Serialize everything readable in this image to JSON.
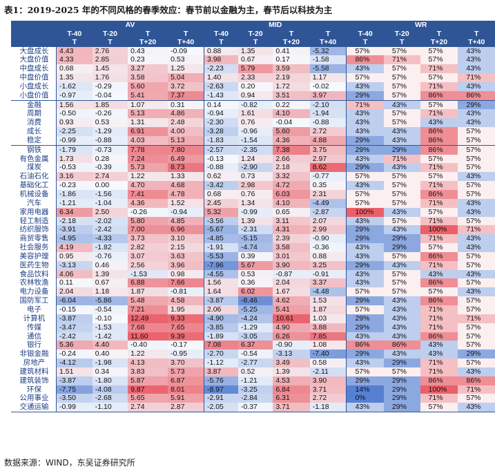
{
  "title": "表1：2019-2025 年的不同风格的春季效应：春节前以金融为主，春节后以科技为主",
  "source": "数据来源：WIND，东吴证券研究所",
  "header": {
    "groups": [
      "AV",
      "MID",
      "WR"
    ],
    "sub_top": [
      "T-40",
      "T-20",
      "T",
      "T"
    ],
    "sub_bottom": [
      "T",
      "T",
      "T+20",
      "T+40"
    ]
  },
  "rows": [
    {
      "name": "大盘成长",
      "av": [
        "4.43",
        "2.76",
        "0.43",
        "-0.09"
      ],
      "mid": [
        "0.88",
        "1.35",
        "0.41",
        "-5.32"
      ],
      "wr": [
        "57%",
        "57%",
        "57%",
        "43%"
      ]
    },
    {
      "name": "大盘价值",
      "av": [
        "4.33",
        "2.85",
        "0.23",
        "0.53"
      ],
      "mid": [
        "3.98",
        "0.67",
        "0.17",
        "-1.58"
      ],
      "wr": [
        "86%",
        "71%",
        "57%",
        "43%"
      ]
    },
    {
      "name": "中盘成长",
      "av": [
        "0.68",
        "1.45",
        "3.27",
        "1.25"
      ],
      "mid": [
        "-2.23",
        "5.79",
        "3.59",
        "-5.58"
      ],
      "wr": [
        "43%",
        "57%",
        "71%",
        "43%"
      ]
    },
    {
      "name": "中盘价值",
      "av": [
        "1.35",
        "1.76",
        "3.58",
        "5.04"
      ],
      "mid": [
        "1.40",
        "2.33",
        "2.19",
        "1.17"
      ],
      "wr": [
        "57%",
        "57%",
        "57%",
        "71%"
      ]
    },
    {
      "name": "小盘成长",
      "av": [
        "-1.62",
        "-0.29",
        "5.60",
        "3.72"
      ],
      "mid": [
        "-2.63",
        "0.20",
        "1.72",
        "-0.02"
      ],
      "wr": [
        "43%",
        "57%",
        "71%",
        "43%"
      ]
    },
    {
      "name": "小盘价值",
      "av": [
        "-0.97",
        "-0.04",
        "5.41",
        "7.37"
      ],
      "mid": [
        "-1.43",
        "0.94",
        "3.51",
        "3.97"
      ],
      "wr": [
        "29%",
        "57%",
        "86%",
        "86%"
      ]
    },
    {
      "name": "金融",
      "av": [
        "1.56",
        "1.85",
        "1.07",
        "0.31"
      ],
      "mid": [
        "0.14",
        "-0.82",
        "0.22",
        "-2.10"
      ],
      "wr": [
        "71%",
        "43%",
        "57%",
        "29%"
      ]
    },
    {
      "name": "周期",
      "av": [
        "-0.50",
        "-0.26",
        "5.13",
        "4.86"
      ],
      "mid": [
        "-0.94",
        "1.61",
        "4.10",
        "-1.94"
      ],
      "wr": [
        "43%",
        "57%",
        "71%",
        "43%"
      ]
    },
    {
      "name": "消费",
      "av": [
        "0.93",
        "0.53",
        "1.31",
        "2.48"
      ],
      "mid": [
        "-2.30",
        "0.76",
        "-0.04",
        "-0.88"
      ],
      "wr": [
        "43%",
        "57%",
        "43%",
        "43%"
      ]
    },
    {
      "name": "成长",
      "av": [
        "-2.25",
        "-1.29",
        "6.91",
        "4.00"
      ],
      "mid": [
        "-3.28",
        "-0.96",
        "5.60",
        "2.72"
      ],
      "wr": [
        "43%",
        "43%",
        "86%",
        "57%"
      ]
    },
    {
      "name": "稳定",
      "av": [
        "-0.99",
        "-0.88",
        "4.03",
        "5.13"
      ],
      "mid": [
        "-1.83",
        "-1.54",
        "4.36",
        "4.88"
      ],
      "wr": [
        "29%",
        "43%",
        "86%",
        "57%"
      ]
    },
    {
      "name": "钢铁",
      "av": [
        "-1.79",
        "-0.73",
        "7.78",
        "7.80"
      ],
      "mid": [
        "-2.57",
        "-2.35",
        "7.38",
        "3.75"
      ],
      "wr": [
        "29%",
        "29%",
        "86%",
        "57%"
      ]
    },
    {
      "name": "有色金属",
      "av": [
        "1.73",
        "0.28",
        "7.24",
        "6.49"
      ],
      "mid": [
        "-0.13",
        "1.24",
        "2.66",
        "2.97"
      ],
      "wr": [
        "43%",
        "71%",
        "57%",
        "57%"
      ]
    },
    {
      "name": "煤炭",
      "av": [
        "-0.53",
        "-0.39",
        "5.73",
        "8.73"
      ],
      "mid": [
        "-0.88",
        "-2.90",
        "2.18",
        "8.62"
      ],
      "wr": [
        "29%",
        "43%",
        "71%",
        "57%"
      ]
    },
    {
      "name": "石油石化",
      "av": [
        "3.16",
        "2.74",
        "1.22",
        "1.33"
      ],
      "mid": [
        "0.62",
        "0.73",
        "3.32",
        "-0.77"
      ],
      "wr": [
        "57%",
        "57%",
        "57%",
        "43%"
      ]
    },
    {
      "name": "基础化工",
      "av": [
        "-0.23",
        "0.00",
        "4.70",
        "4.68"
      ],
      "mid": [
        "-3.42",
        "2.98",
        "4.72",
        "0.35"
      ],
      "wr": [
        "43%",
        "57%",
        "71%",
        "57%"
      ]
    },
    {
      "name": "机械设备",
      "av": [
        "-1.86",
        "-1.56",
        "7.41",
        "4.78"
      ],
      "mid": [
        "0.68",
        "0.76",
        "6.03",
        "2.31"
      ],
      "wr": [
        "57%",
        "57%",
        "86%",
        "57%"
      ]
    },
    {
      "name": "汽车",
      "av": [
        "-1.21",
        "-1.04",
        "4.36",
        "1.52"
      ],
      "mid": [
        "2.45",
        "1.34",
        "4.10",
        "-4.49"
      ],
      "wr": [
        "57%",
        "57%",
        "71%",
        "43%"
      ]
    },
    {
      "name": "家用电器",
      "av": [
        "6.34",
        "2.50",
        "-0.26",
        "-0.94"
      ],
      "mid": [
        "5.32",
        "-0.99",
        "0.65",
        "-2.87"
      ],
      "wr": [
        "100%",
        "43%",
        "57%",
        "43%"
      ]
    },
    {
      "name": "轻工制造",
      "av": [
        "-2.18",
        "-2.02",
        "5.80",
        "4.85"
      ],
      "mid": [
        "-3.56",
        "1.39",
        "3.11",
        "2.07"
      ],
      "wr": [
        "43%",
        "57%",
        "71%",
        "57%"
      ]
    },
    {
      "name": "纺织服饰",
      "av": [
        "-3.91",
        "-2.42",
        "7.00",
        "6.96"
      ],
      "mid": [
        "-5.67",
        "-2.31",
        "4.31",
        "2.99"
      ],
      "wr": [
        "29%",
        "43%",
        "100%",
        "71%"
      ]
    },
    {
      "name": "商贸零售",
      "av": [
        "-4.95",
        "-4.33",
        "3.73",
        "3.10"
      ],
      "mid": [
        "-4.85",
        "-5.15",
        "2.39",
        "-0.90"
      ],
      "wr": [
        "29%",
        "29%",
        "71%",
        "43%"
      ]
    },
    {
      "name": "社会服务",
      "av": [
        "4.19",
        "-1.82",
        "2.82",
        "2.15"
      ],
      "mid": [
        "-1.91",
        "-4.74",
        "3.58",
        "-0.36"
      ],
      "wr": [
        "43%",
        "29%",
        "57%",
        "43%"
      ]
    },
    {
      "name": "美容护理",
      "av": [
        "0.95",
        "-0.76",
        "3.07",
        "3.63"
      ],
      "mid": [
        "-5.53",
        "0.39",
        "3.01",
        "0.88"
      ],
      "wr": [
        "43%",
        "57%",
        "86%",
        "57%"
      ]
    },
    {
      "name": "医药生物",
      "av": [
        "-3.13",
        "0.46",
        "2.56",
        "3.96"
      ],
      "mid": [
        "-7.96",
        "5.67",
        "3.90",
        "3.25"
      ],
      "wr": [
        "29%",
        "43%",
        "71%",
        "57%"
      ]
    },
    {
      "name": "食品饮料",
      "av": [
        "4.06",
        "1.39",
        "-1.53",
        "0.98"
      ],
      "mid": [
        "-4.55",
        "0.53",
        "-0.87",
        "-0.91"
      ],
      "wr": [
        "43%",
        "57%",
        "43%",
        "43%"
      ]
    },
    {
      "name": "农林牧渔",
      "av": [
        "0.11",
        "0.67",
        "6.88",
        "7.66"
      ],
      "mid": [
        "1.56",
        "0.36",
        "2.04",
        "3.37"
      ],
      "wr": [
        "43%",
        "57%",
        "86%",
        "57%"
      ]
    },
    {
      "name": "电力设备",
      "av": [
        "2.04",
        "1.18",
        "1.87",
        "-0.81"
      ],
      "mid": [
        "1.64",
        "6.02",
        "1.67",
        "-4.48"
      ],
      "wr": [
        "57%",
        "57%",
        "57%",
        "43%"
      ]
    },
    {
      "name": "国防军工",
      "av": [
        "-6.04",
        "-5.86",
        "5.48",
        "4.58"
      ],
      "mid": [
        "-3.87",
        "-8.46",
        "4.62",
        "1.53"
      ],
      "wr": [
        "29%",
        "43%",
        "86%",
        "57%"
      ]
    },
    {
      "name": "电子",
      "av": [
        "-0.15",
        "-0.54",
        "7.21",
        "1.95"
      ],
      "mid": [
        "2.06",
        "-5.25",
        "5.41",
        "1.87"
      ],
      "wr": [
        "57%",
        "43%",
        "71%",
        "57%"
      ]
    },
    {
      "name": "计算机",
      "av": [
        "-3.87",
        "-0.10",
        "12.49",
        "9.33"
      ],
      "mid": [
        "-4.90",
        "-4.24",
        "10.61",
        "1.03"
      ],
      "wr": [
        "29%",
        "43%",
        "71%",
        "71%"
      ]
    },
    {
      "name": "传媒",
      "av": [
        "-3.47",
        "-1.53",
        "7.68",
        "7.65"
      ],
      "mid": [
        "-3.85",
        "-1.29",
        "4.90",
        "3.88"
      ],
      "wr": [
        "29%",
        "43%",
        "71%",
        "57%"
      ]
    },
    {
      "name": "通信",
      "av": [
        "-2.42",
        "-1.42",
        "11.60",
        "9.39"
      ],
      "mid": [
        "-1.89",
        "-3.05",
        "6.26",
        "7.85"
      ],
      "wr": [
        "43%",
        "43%",
        "86%",
        "57%"
      ]
    },
    {
      "name": "银行",
      "av": [
        "5.36",
        "4.40",
        "-0.40",
        "-0.17"
      ],
      "mid": [
        "7.08",
        "6.37",
        "-0.90",
        "1.08"
      ],
      "wr": [
        "86%",
        "86%",
        "43%",
        "57%"
      ]
    },
    {
      "name": "非银金融",
      "av": [
        "-0.24",
        "0.40",
        "1.22",
        "-0.95"
      ],
      "mid": [
        "-2.70",
        "-0.54",
        "-3.13",
        "-7.40"
      ],
      "wr": [
        "29%",
        "43%",
        "43%",
        "29%"
      ]
    },
    {
      "name": "房地产",
      "av": [
        "-4.12",
        "-1.98",
        "4.13",
        "3.70"
      ],
      "mid": [
        "-1.12",
        "-2.77",
        "3.49",
        "0.58"
      ],
      "wr": [
        "43%",
        "29%",
        "71%",
        "57%"
      ]
    },
    {
      "name": "建筑材料",
      "av": [
        "1.51",
        "0.34",
        "3.83",
        "5.73"
      ],
      "mid": [
        "3.87",
        "0.52",
        "1.39",
        "-2.11"
      ],
      "wr": [
        "57%",
        "57%",
        "71%",
        "43%"
      ]
    },
    {
      "name": "建筑装饰",
      "av": [
        "-3.87",
        "-1.80",
        "5.87",
        "6.87"
      ],
      "mid": [
        "-5.76",
        "-1.21",
        "4.53",
        "3.90"
      ],
      "wr": [
        "29%",
        "29%",
        "86%",
        "86%"
      ]
    },
    {
      "name": "环保",
      "av": [
        "-7.75",
        "-4.08",
        "9.87",
        "8.01"
      ],
      "mid": [
        "-8.97",
        "-3.25",
        "6.84",
        "3.71"
      ],
      "wr": [
        "14%",
        "29%",
        "100%",
        "71%"
      ]
    },
    {
      "name": "公用事业",
      "av": [
        "-3.50",
        "-2.68",
        "5.65",
        "5.91"
      ],
      "mid": [
        "-2.91",
        "-2.84",
        "6.31",
        "2.72"
      ],
      "wr": [
        "0%",
        "29%",
        "71%",
        "57%"
      ]
    },
    {
      "name": "交通运输",
      "av": [
        "-0.99",
        "-1.10",
        "2.74",
        "2.87"
      ],
      "mid": [
        "-2.05",
        "-0.37",
        "3.71",
        "-1.18"
      ],
      "wr": [
        "43%",
        "29%",
        "57%",
        "43%"
      ]
    }
  ],
  "group_starts": [
    6,
    11
  ],
  "colors": {
    "header": "#2f5597",
    "pos_max": "#e8505a",
    "neg_max": "#4f7ad0",
    "wr_high": "#e8505a",
    "wr_low": "#4f7ad0",
    "neutral": "#f6f9fd"
  }
}
